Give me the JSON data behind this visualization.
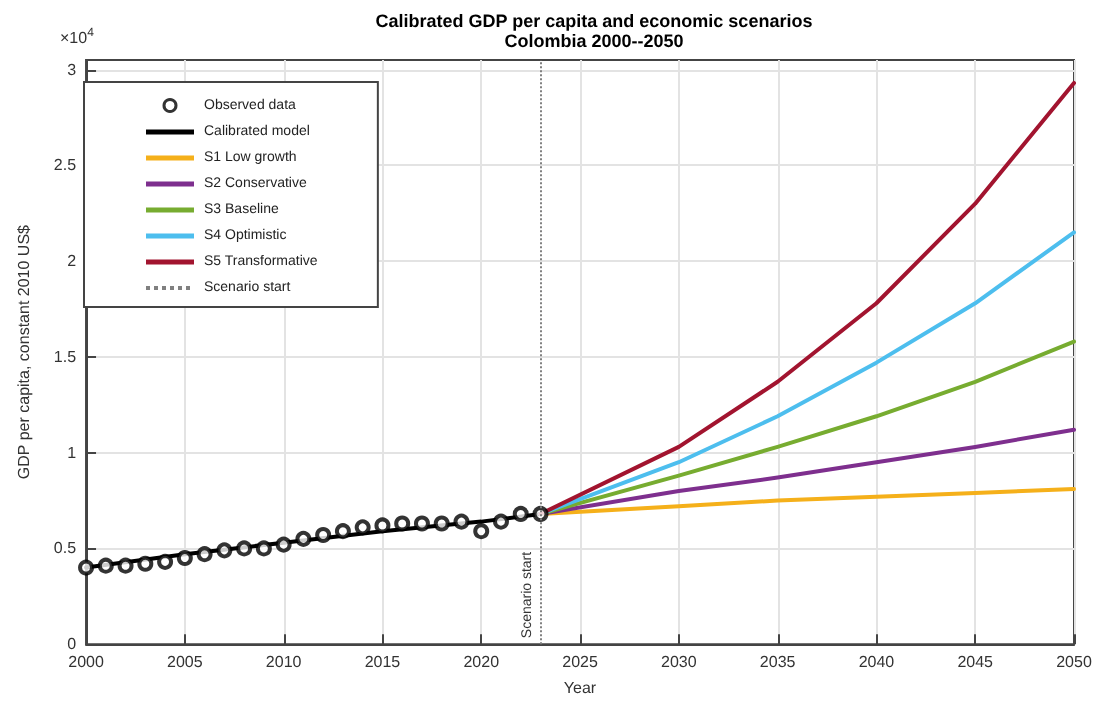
{
  "chart_data": {
    "type": "line",
    "title": "Calibrated GDP per capita and economic scenarios",
    "subtitle": "Colombia 2000--2050",
    "xlabel": "Year",
    "ylabel": "GDP per capita, constant 2010 US$",
    "annotations": [
      "×10$^{4}$"
    ],
    "xlim": [
      2000,
      2050
    ],
    "xticks": [
      2000,
      2005,
      2010,
      2015,
      2020,
      2025,
      2030,
      2035,
      2040,
      2045,
      2050
    ],
    "ylim": [
      0,
      3.05
    ],
    "yticks": [
      0,
      0.5,
      1,
      1.5,
      2,
      2.5,
      3
    ],
    "grid": true,
    "legend": "top left",
    "series": [
      {
        "name": "Observed data",
        "type": "scatter",
        "marker": "circle",
        "color": "#000000",
        "x": [
          2000,
          2001,
          2002,
          2003,
          2004,
          2005,
          2006,
          2007,
          2008,
          2009,
          2010,
          2011,
          2012,
          2013,
          2014,
          2015,
          2016,
          2017,
          2018,
          2019,
          2020,
          2021,
          2022,
          2023
        ],
        "values": [
          0.4,
          0.41,
          0.41,
          0.42,
          0.43,
          0.45,
          0.47,
          0.49,
          0.5,
          0.5,
          0.52,
          0.55,
          0.57,
          0.59,
          0.61,
          0.62,
          0.63,
          0.63,
          0.63,
          0.64,
          0.59,
          0.64,
          0.68,
          0.68
        ]
      },
      {
        "name": "Calibrated model",
        "color": "#000000",
        "marker": "none",
        "x": [
          2000,
          2005,
          2010,
          2015,
          2020,
          2023
        ],
        "values": [
          0.4,
          0.47,
          0.53,
          0.59,
          0.64,
          0.68
        ]
      },
      {
        "name": "S1 Low growth",
        "color": "#f5b01a",
        "marker": "none",
        "x": [
          2023,
          2030,
          2035,
          2040,
          2045,
          2050
        ],
        "values": [
          0.68,
          0.72,
          0.75,
          0.77,
          0.79,
          0.81
        ]
      },
      {
        "name": "S2 Conservative",
        "color": "#7e2f8e",
        "marker": "none",
        "x": [
          2023,
          2030,
          2035,
          2040,
          2045,
          2050
        ],
        "values": [
          0.68,
          0.8,
          0.87,
          0.95,
          1.03,
          1.12
        ]
      },
      {
        "name": "S3 Baseline",
        "color": "#77ac30",
        "marker": "none",
        "x": [
          2023,
          2030,
          2035,
          2040,
          2045,
          2050
        ],
        "values": [
          0.68,
          0.88,
          1.03,
          1.19,
          1.37,
          1.58
        ]
      },
      {
        "name": "S4 Optimistic",
        "color": "#4dbeee",
        "marker": "none",
        "x": [
          2023,
          2030,
          2035,
          2040,
          2045,
          2050
        ],
        "values": [
          0.68,
          0.95,
          1.19,
          1.47,
          1.78,
          2.15
        ]
      },
      {
        "name": "S5 Transformative",
        "color": "#a2142f",
        "marker": "none",
        "x": [
          2023,
          2030,
          2035,
          2040,
          2045,
          2050
        ],
        "values": [
          0.68,
          1.03,
          1.37,
          1.78,
          2.3,
          2.93
        ]
      }
    ],
    "ref_lines": [
      {
        "axis": "x",
        "value": 2023,
        "label": "Scenario start",
        "color": "#808080",
        "line_style": "dotted"
      }
    ]
  }
}
